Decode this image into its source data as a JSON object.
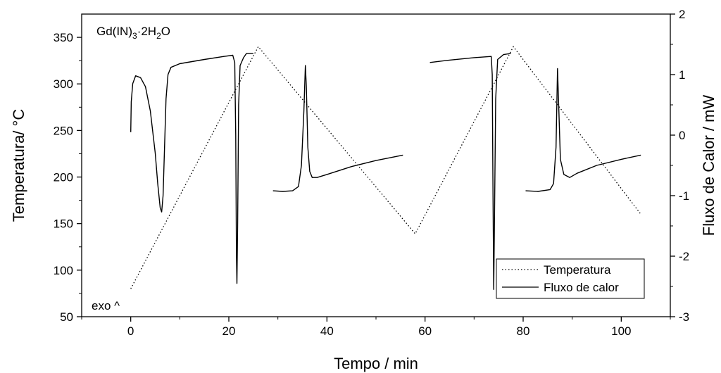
{
  "chart_data": {
    "type": "line",
    "xlabel": "Tempo / min",
    "ylabel_left": "Temperatura/  °C",
    "ylabel_right": "Fluxo de Calor / mW",
    "sample_label": "Gd(IN)3·2H2O",
    "annotation": "exo ^",
    "grid": false,
    "legend_position": "bottom-right",
    "x_axis": {
      "range": [
        -10,
        110
      ],
      "ticks": [
        0,
        20,
        40,
        60,
        80,
        100
      ]
    },
    "y_left_axis": {
      "range": [
        50,
        375
      ],
      "ticks": [
        50,
        100,
        150,
        200,
        250,
        300,
        350
      ]
    },
    "y_right_axis": {
      "range": [
        -3,
        2
      ],
      "ticks": [
        -3,
        -2,
        -1,
        0,
        1,
        2
      ]
    },
    "series": [
      {
        "name": "Temperatura",
        "axis": "left",
        "style": "dotted",
        "points": [
          [
            0,
            80
          ],
          [
            26,
            340
          ],
          [
            58,
            139
          ],
          [
            78,
            340
          ],
          [
            104,
            160
          ]
        ]
      },
      {
        "name": "Fluxo de calor",
        "axis": "right",
        "style": "solid",
        "segments": [
          [
            [
              0,
              0.05
            ],
            [
              0.1,
              0.55
            ],
            [
              0.4,
              0.85
            ],
            [
              1,
              0.98
            ],
            [
              2,
              0.95
            ],
            [
              3,
              0.8
            ],
            [
              4,
              0.4
            ],
            [
              5,
              -0.3
            ],
            [
              5.5,
              -0.8
            ],
            [
              6,
              -1.2
            ],
            [
              6.3,
              -1.27
            ],
            [
              6.6,
              -1.0
            ],
            [
              6.9,
              -0.2
            ],
            [
              7.2,
              0.6
            ],
            [
              7.6,
              1.0
            ],
            [
              8.2,
              1.12
            ],
            [
              10,
              1.18
            ],
            [
              15,
              1.25
            ],
            [
              19,
              1.3
            ],
            [
              20.8,
              1.32
            ],
            [
              21.2,
              1.2
            ],
            [
              21.4,
              0.0
            ],
            [
              21.55,
              -2.0
            ],
            [
              21.65,
              -2.45
            ],
            [
              21.8,
              -1.5
            ],
            [
              22.0,
              0.5
            ],
            [
              22.3,
              1.15
            ],
            [
              23,
              1.28
            ],
            [
              23.6,
              1.35
            ],
            [
              25,
              1.35
            ]
          ],
          [
            [
              29,
              -0.92
            ],
            [
              31,
              -0.93
            ],
            [
              33,
              -0.92
            ],
            [
              34.2,
              -0.85
            ],
            [
              34.8,
              -0.5
            ],
            [
              35.3,
              0.4
            ],
            [
              35.6,
              1.15
            ],
            [
              35.8,
              0.8
            ],
            [
              36.1,
              -0.2
            ],
            [
              36.5,
              -0.6
            ],
            [
              37,
              -0.7
            ],
            [
              38,
              -0.7
            ],
            [
              40,
              -0.65
            ],
            [
              45,
              -0.52
            ],
            [
              50,
              -0.42
            ],
            [
              55.5,
              -0.33
            ]
          ],
          [
            [
              61,
              1.2
            ],
            [
              65,
              1.24
            ],
            [
              70,
              1.28
            ],
            [
              73.5,
              1.3
            ],
            [
              73.7,
              1.0
            ],
            [
              73.85,
              -1.0
            ],
            [
              74.0,
              -2.55
            ],
            [
              74.15,
              -1.5
            ],
            [
              74.4,
              0.6
            ],
            [
              74.8,
              1.25
            ],
            [
              76,
              1.33
            ],
            [
              77.5,
              1.35
            ]
          ],
          [
            [
              80.5,
              -0.92
            ],
            [
              83,
              -0.93
            ],
            [
              85.5,
              -0.9
            ],
            [
              86.2,
              -0.8
            ],
            [
              86.7,
              -0.2
            ],
            [
              87.0,
              1.1
            ],
            [
              87.2,
              0.6
            ],
            [
              87.6,
              -0.4
            ],
            [
              88.3,
              -0.65
            ],
            [
              89.5,
              -0.7
            ],
            [
              91,
              -0.63
            ],
            [
              95,
              -0.5
            ],
            [
              100,
              -0.4
            ],
            [
              104,
              -0.33
            ]
          ]
        ]
      }
    ]
  }
}
